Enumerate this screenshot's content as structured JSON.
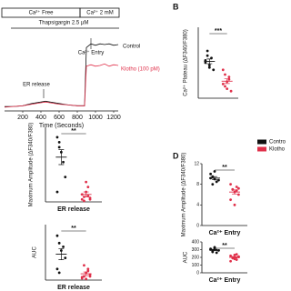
{
  "panel_labels": [
    "B",
    "D"
  ],
  "legend": [
    {
      "name": "Contro",
      "color": "#111111"
    },
    {
      "name": "Klotho",
      "color": "#e0304a"
    }
  ],
  "chart_data": [
    {
      "type": "line",
      "xlabel": "Time (Seconds)",
      "xlim": [
        0,
        1250
      ],
      "xticks": [
        200,
        400,
        600,
        800,
        1000,
        1200
      ],
      "ylim": [
        0,
        1
      ],
      "annotations": [
        "Ca²⁺ Free",
        "Ca²⁺ 2 mM",
        "Thapsigargin 2.5 µM",
        "Ca²⁺ Entry",
        "ER release"
      ],
      "x": [
        0,
        100,
        200,
        300,
        400,
        450,
        500,
        600,
        700,
        800,
        880,
        900,
        950,
        1000,
        1050,
        1100,
        1150,
        1200,
        1250
      ],
      "series": [
        {
          "name": "Control",
          "color": "#111111",
          "values": [
            0.06,
            0.06,
            0.07,
            0.1,
            0.12,
            0.13,
            0.12,
            0.1,
            0.08,
            0.07,
            0.07,
            0.85,
            0.9,
            0.88,
            0.9,
            0.89,
            0.9,
            0.88,
            0.89
          ]
        },
        {
          "name": "Klotho (100 pM)",
          "color": "#e0304a",
          "values": [
            0.05,
            0.06,
            0.07,
            0.09,
            0.11,
            0.12,
            0.11,
            0.09,
            0.08,
            0.07,
            0.07,
            0.6,
            0.62,
            0.6,
            0.61,
            0.63,
            0.6,
            0.62,
            0.61
          ]
        }
      ]
    },
    {
      "type": "dot",
      "ylabel": "Ca²⁺ Plateau (ΔF340/F380)",
      "significance": "***",
      "ylim": [
        0,
        15
      ],
      "series": [
        {
          "color": "#111111",
          "values": [
            8,
            9,
            7,
            8.5,
            6,
            7.5,
            10,
            6.5
          ],
          "mean": 7.8,
          "sem": 0.5
        },
        {
          "color": "#e0304a",
          "values": [
            3,
            5,
            2,
            4,
            1.5,
            6,
            2.5,
            3.5,
            4.5
          ],
          "mean": 3.6,
          "sem": 0.5
        }
      ]
    },
    {
      "type": "dot",
      "ylabel": "Maximum Amplitude (ΔF340/F380)",
      "xlabel": "ER release",
      "significance": "**",
      "ylim": [
        0,
        0.15
      ],
      "series": [
        {
          "color": "#111111",
          "values": [
            0.13,
            0.12,
            0.1,
            0.08,
            0.05,
            0.02,
            0.11
          ],
          "mean": 0.09,
          "sem": 0.015
        },
        {
          "color": "#e0304a",
          "values": [
            0.005,
            0.01,
            0.02,
            0.03,
            0.008,
            0.015,
            0.002,
            0.04,
            0.012,
            0.005
          ],
          "mean": 0.015,
          "sem": 0.005
        }
      ]
    },
    {
      "type": "dot",
      "ylabel": "AUC",
      "xlabel": "ER release",
      "significance": "**",
      "ylim": [
        0,
        15
      ],
      "series": [
        {
          "color": "#111111",
          "values": [
            12,
            10,
            8,
            9,
            6,
            3,
            2
          ],
          "mean": 7,
          "sem": 1.5
        },
        {
          "color": "#e0304a",
          "values": [
            0.5,
            1,
            2,
            3,
            1.5,
            0.8,
            4,
            0.3,
            2.5,
            1
          ],
          "mean": 1.7,
          "sem": 0.5
        }
      ]
    },
    {
      "type": "dot",
      "ylabel": "Maximum Amplitude (ΔF340/F380)",
      "xlabel": "Ca²⁺ Entry",
      "significance": "**",
      "ylim": [
        0,
        12
      ],
      "yticks": [
        0,
        4,
        8,
        12
      ],
      "series": [
        {
          "color": "#111111",
          "values": [
            10,
            9.5,
            9,
            8.5,
            8.8,
            9.2,
            8,
            10.5
          ],
          "mean": 9.2,
          "sem": 0.3
        },
        {
          "color": "#e0304a",
          "values": [
            8,
            7,
            6.5,
            7.5,
            6,
            5,
            7,
            4,
            6.8,
            7.2
          ],
          "mean": 6.5,
          "sem": 0.4
        }
      ]
    },
    {
      "type": "dot",
      "ylabel": "AUC",
      "xlabel": "Ca²⁺ Entry",
      "significance": "**",
      "ylim": [
        0,
        400
      ],
      "yticks": [
        0,
        100,
        200,
        300,
        400
      ],
      "series": [
        {
          "color": "#111111",
          "values": [
            300,
            280,
            320,
            260,
            290,
            310,
            270,
            330
          ],
          "mean": 295,
          "sem": 9
        },
        {
          "color": "#e0304a",
          "values": [
            220,
            200,
            180,
            240,
            210,
            150,
            190,
            230,
            170,
            205
          ],
          "mean": 200,
          "sem": 9
        }
      ]
    }
  ]
}
